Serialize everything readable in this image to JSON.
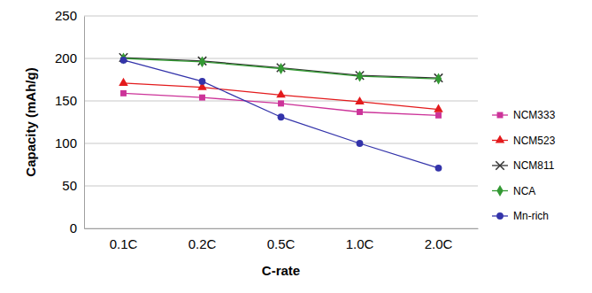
{
  "chart_data": {
    "type": "line",
    "x_label": "C-rate",
    "y_label": "Capacity (mAh/g)",
    "categories": [
      "0.1C",
      "0.2C",
      "0.5C",
      "1.0C",
      "2.0C"
    ],
    "series": [
      {
        "name": "NCM333",
        "color": "#cc3399",
        "marker": "square",
        "values": [
          159,
          154,
          147,
          137,
          133
        ]
      },
      {
        "name": "NCM523",
        "color": "#e31a1c",
        "marker": "triangle",
        "values": [
          171,
          166,
          157,
          149,
          140
        ]
      },
      {
        "name": "NCM811",
        "color": "#333333",
        "marker": "x",
        "values": [
          201,
          197,
          189,
          180,
          177
        ]
      },
      {
        "name": "NCA",
        "color": "#339933",
        "marker": "diamond",
        "values": [
          200,
          196,
          188,
          179,
          176
        ]
      },
      {
        "name": "Mn-rich",
        "color": "#3333aa",
        "marker": "circle",
        "values": [
          198,
          173,
          131,
          100,
          71
        ]
      }
    ],
    "ylim": [
      0,
      250
    ],
    "yticks": [
      0,
      50,
      100,
      150,
      200,
      250
    ],
    "grid": true,
    "legend": "right"
  }
}
